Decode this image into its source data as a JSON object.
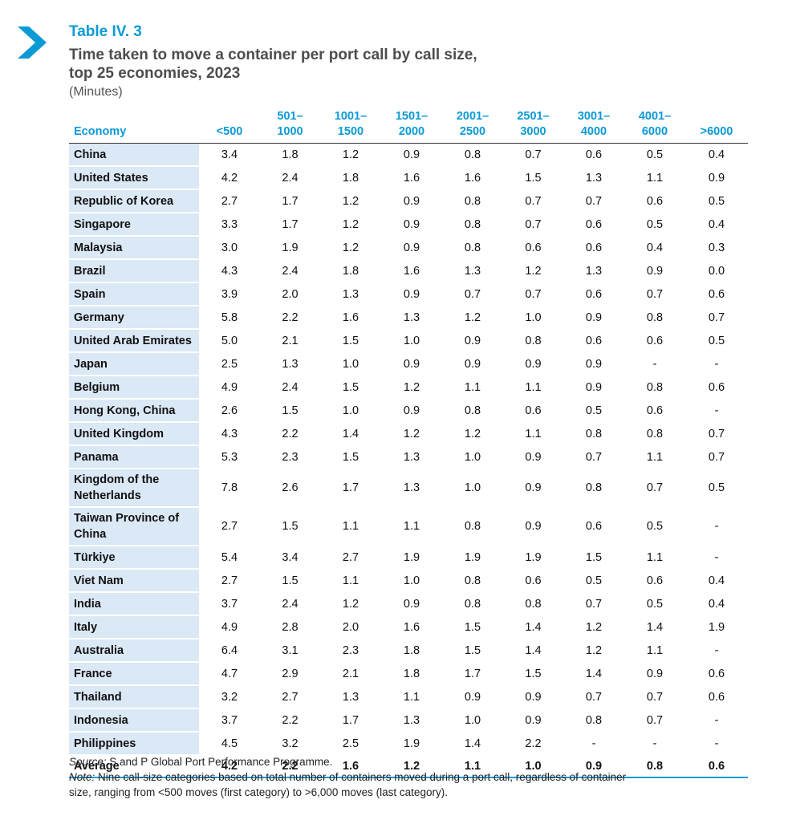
{
  "header": {
    "label": "Table IV. 3",
    "title_line1": "Time taken to move a container per port call by call size,",
    "title_line2": "top 25 economies, 2023",
    "unit": "(Minutes)"
  },
  "table": {
    "columns": [
      [
        "",
        "Economy"
      ],
      [
        "",
        "<500"
      ],
      [
        "501–",
        "1000"
      ],
      [
        "1001–",
        "1500"
      ],
      [
        "1501–",
        "2000"
      ],
      [
        "2001–",
        "2500"
      ],
      [
        "2501–",
        "3000"
      ],
      [
        "3001–",
        "4000"
      ],
      [
        "4001–",
        "6000"
      ],
      [
        "",
        ">6000"
      ]
    ],
    "rows": [
      [
        "China",
        "3.4",
        "1.8",
        "1.2",
        "0.9",
        "0.8",
        "0.7",
        "0.6",
        "0.5",
        "0.4"
      ],
      [
        "United States",
        "4.2",
        "2.4",
        "1.8",
        "1.6",
        "1.6",
        "1.5",
        "1.3",
        "1.1",
        "0.9"
      ],
      [
        "Republic of Korea",
        "2.7",
        "1.7",
        "1.2",
        "0.9",
        "0.8",
        "0.7",
        "0.7",
        "0.6",
        "0.5"
      ],
      [
        "Singapore",
        "3.3",
        "1.7",
        "1.2",
        "0.9",
        "0.8",
        "0.7",
        "0.6",
        "0.5",
        "0.4"
      ],
      [
        "Malaysia",
        "3.0",
        "1.9",
        "1.2",
        "0.9",
        "0.8",
        "0.6",
        "0.6",
        "0.4",
        "0.3"
      ],
      [
        "Brazil",
        "4.3",
        "2.4",
        "1.8",
        "1.6",
        "1.3",
        "1.2",
        "1.3",
        "0.9",
        "0.0"
      ],
      [
        "Spain",
        "3.9",
        "2.0",
        "1.3",
        "0.9",
        "0.7",
        "0.7",
        "0.6",
        "0.7",
        "0.6"
      ],
      [
        "Germany",
        "5.8",
        "2.2",
        "1.6",
        "1.3",
        "1.2",
        "1.0",
        "0.9",
        "0.8",
        "0.7"
      ],
      [
        "United Arab Emirates",
        "5.0",
        "2.1",
        "1.5",
        "1.0",
        "0.9",
        "0.8",
        "0.6",
        "0.6",
        "0.5"
      ],
      [
        "Japan",
        "2.5",
        "1.3",
        "1.0",
        "0.9",
        "0.9",
        "0.9",
        "0.9",
        "-",
        "-"
      ],
      [
        "Belgium",
        "4.9",
        "2.4",
        "1.5",
        "1.2",
        "1.1",
        "1.1",
        "0.9",
        "0.8",
        "0.6"
      ],
      [
        "Hong Kong, China",
        "2.6",
        "1.5",
        "1.0",
        "0.9",
        "0.8",
        "0.6",
        "0.5",
        "0.6",
        "-"
      ],
      [
        "United Kingdom",
        "4.3",
        "2.2",
        "1.4",
        "1.2",
        "1.2",
        "1.1",
        "0.8",
        "0.8",
        "0.7"
      ],
      [
        "Panama",
        "5.3",
        "2.3",
        "1.5",
        "1.3",
        "1.0",
        "0.9",
        "0.7",
        "1.1",
        "0.7"
      ],
      [
        "Kingdom of the Netherlands",
        "7.8",
        "2.6",
        "1.7",
        "1.3",
        "1.0",
        "0.9",
        "0.8",
        "0.7",
        "0.5"
      ],
      [
        "Taiwan Province of China",
        "2.7",
        "1.5",
        "1.1",
        "1.1",
        "0.8",
        "0.9",
        "0.6",
        "0.5",
        "-"
      ],
      [
        "Türkiye",
        "5.4",
        "3.4",
        "2.7",
        "1.9",
        "1.9",
        "1.9",
        "1.5",
        "1.1",
        "-"
      ],
      [
        "Viet Nam",
        "2.7",
        "1.5",
        "1.1",
        "1.0",
        "0.8",
        "0.6",
        "0.5",
        "0.6",
        "0.4"
      ],
      [
        "India",
        "3.7",
        "2.4",
        "1.2",
        "0.9",
        "0.8",
        "0.8",
        "0.7",
        "0.5",
        "0.4"
      ],
      [
        "Italy",
        "4.9",
        "2.8",
        "2.0",
        "1.6",
        "1.5",
        "1.4",
        "1.2",
        "1.4",
        "1.9"
      ],
      [
        "Australia",
        "6.4",
        "3.1",
        "2.3",
        "1.8",
        "1.5",
        "1.4",
        "1.2",
        "1.1",
        "-"
      ],
      [
        "France",
        "4.7",
        "2.9",
        "2.1",
        "1.8",
        "1.7",
        "1.5",
        "1.4",
        "0.9",
        "0.6"
      ],
      [
        "Thailand",
        "3.2",
        "2.7",
        "1.3",
        "1.1",
        "0.9",
        "0.9",
        "0.7",
        "0.7",
        "0.6"
      ],
      [
        "Indonesia",
        "3.7",
        "2.2",
        "1.7",
        "1.3",
        "1.0",
        "0.9",
        "0.8",
        "0.7",
        "-"
      ],
      [
        "Philippines",
        "4.5",
        "3.2",
        "2.5",
        "1.9",
        "1.4",
        "2.2",
        "-",
        "-",
        "-"
      ]
    ],
    "average": [
      "Average",
      "4.2",
      "2.2",
      "1.6",
      "1.2",
      "1.1",
      "1.0",
      "0.9",
      "0.8",
      "0.6"
    ]
  },
  "footer": {
    "source_label": "Source:",
    "source_text": " S and P Global Port Performance Programme.",
    "note_label": "Note:",
    "note_text": " Nine call-size categories based on total number of containers moved during a port call, regardless of container size, ranging from <500 moves (first category) to >6,000 moves (last category)."
  },
  "colors": {
    "accent": "#0c9ad6",
    "row_shade": "#dbe8f5"
  },
  "icons": {
    "marker": "chevron-right-icon"
  }
}
